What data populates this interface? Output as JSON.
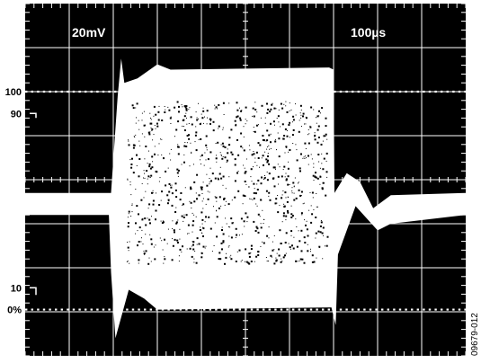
{
  "chart_data": {
    "type": "line",
    "title": "",
    "xlabel": "",
    "ylabel": "",
    "settings": {
      "vertical_scale": "20mV",
      "horizontal_scale": "100µs"
    },
    "reference_levels": [
      {
        "label": "100",
        "percent": 100,
        "marker": "dotted"
      },
      {
        "label": "90",
        "percent": 90,
        "marker": "tick"
      },
      {
        "label": "10",
        "percent": 10,
        "marker": "tick"
      },
      {
        "label": "0%",
        "percent": 0,
        "marker": "dotted"
      }
    ],
    "grid": {
      "on": true,
      "divisions_x": 10,
      "divisions_y": 8
    },
    "trace": {
      "color": "#ffffff",
      "baseline_div": -0.55,
      "burst_start_div": 2.0,
      "burst_end_div": 7.0,
      "burst_top_div": 2.55,
      "burst_bottom_div": -2.95
    }
  },
  "figure_code": "09679-012",
  "colors": {
    "screen": "#000000",
    "grid": "#ffffff",
    "trace": "#ffffff",
    "labels": "#000000"
  }
}
